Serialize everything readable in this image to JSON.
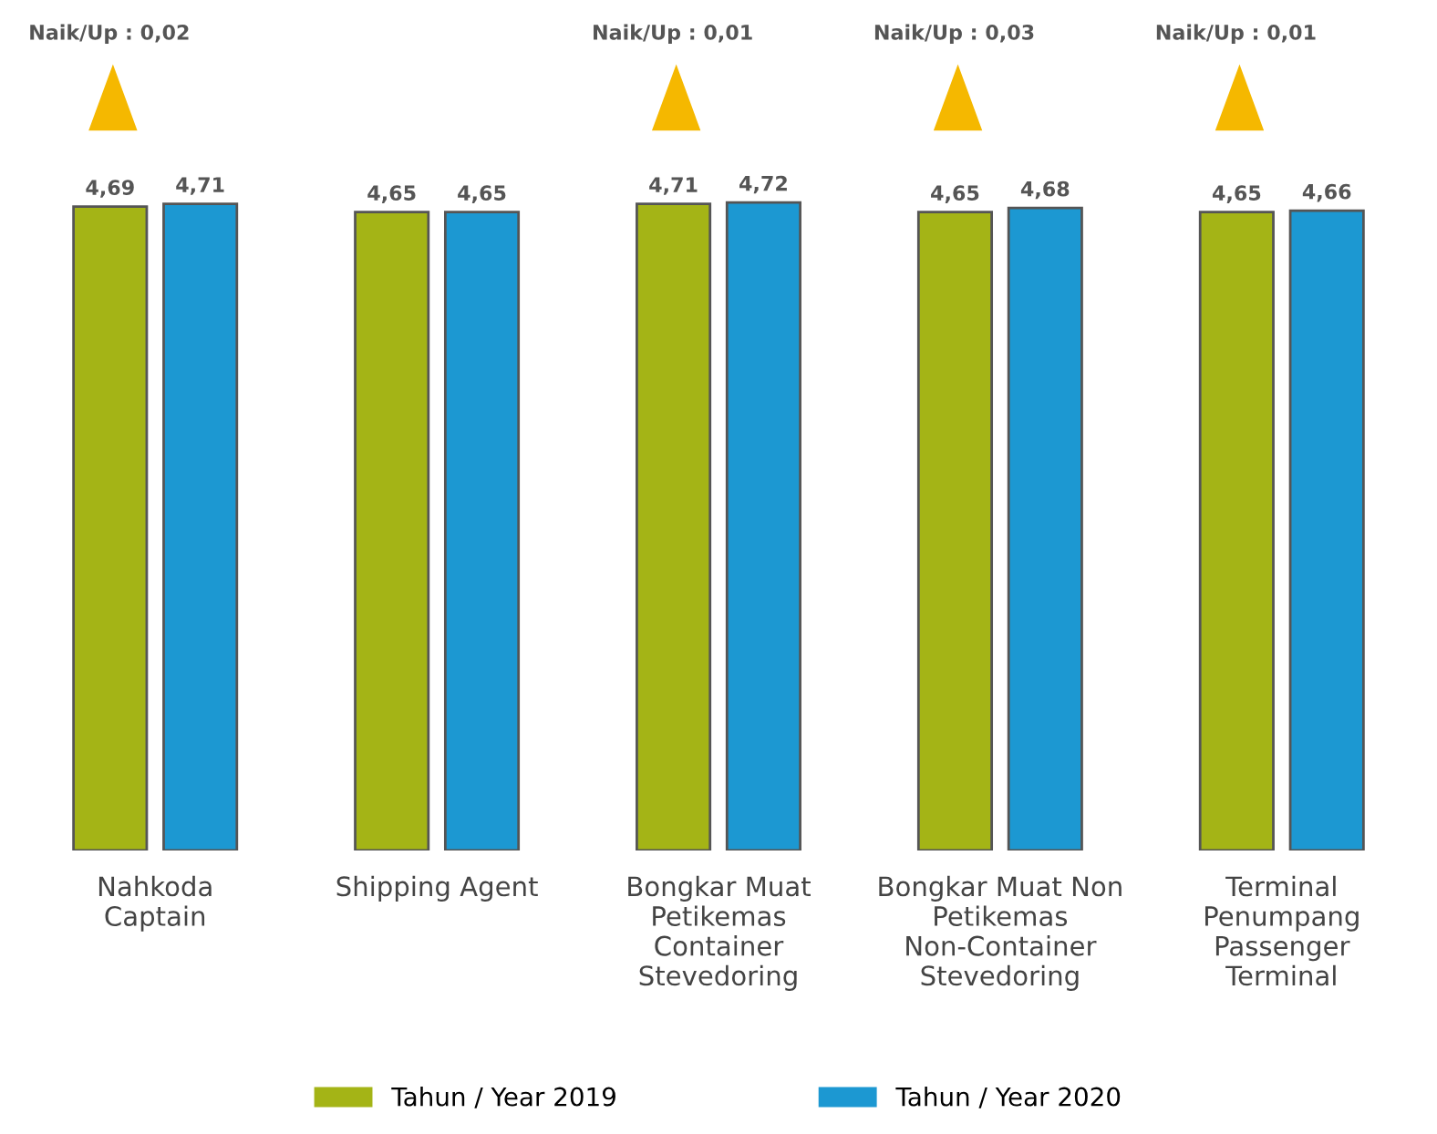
{
  "chart_data": {
    "type": "bar",
    "categories": [
      "Nahkoda\nCaptain",
      "Shipping Agent",
      "Bongkar Muat\nPetikemas\nContainer\nStevedoring",
      "Bongkar Muat Non\nPetikemas\nNon-Container\nStevedoring",
      "Terminal\nPenumpang\nPassenger\nTerminal"
    ],
    "series": [
      {
        "name": "Tahun / Year 2019",
        "color": "#a4b416",
        "values": [
          4.69,
          4.65,
          4.71,
          4.65,
          4.65
        ],
        "value_labels": [
          "4,69",
          "4,65",
          "4,71",
          "4,65",
          "4,65"
        ]
      },
      {
        "name": "Tahun / Year 2020",
        "color": "#1c98d2",
        "values": [
          4.71,
          4.65,
          4.72,
          4.68,
          4.66
        ],
        "value_labels": [
          "4,71",
          "4,65",
          "4,72",
          "4,68",
          "4,66"
        ]
      }
    ],
    "legend": "bottom",
    "annotations": [
      "Naik/Up : 0,02",
      "Naik/Up : 0,01",
      "Naik/Up : 0,03",
      "Naik/Up : 0,01"
    ]
  }
}
